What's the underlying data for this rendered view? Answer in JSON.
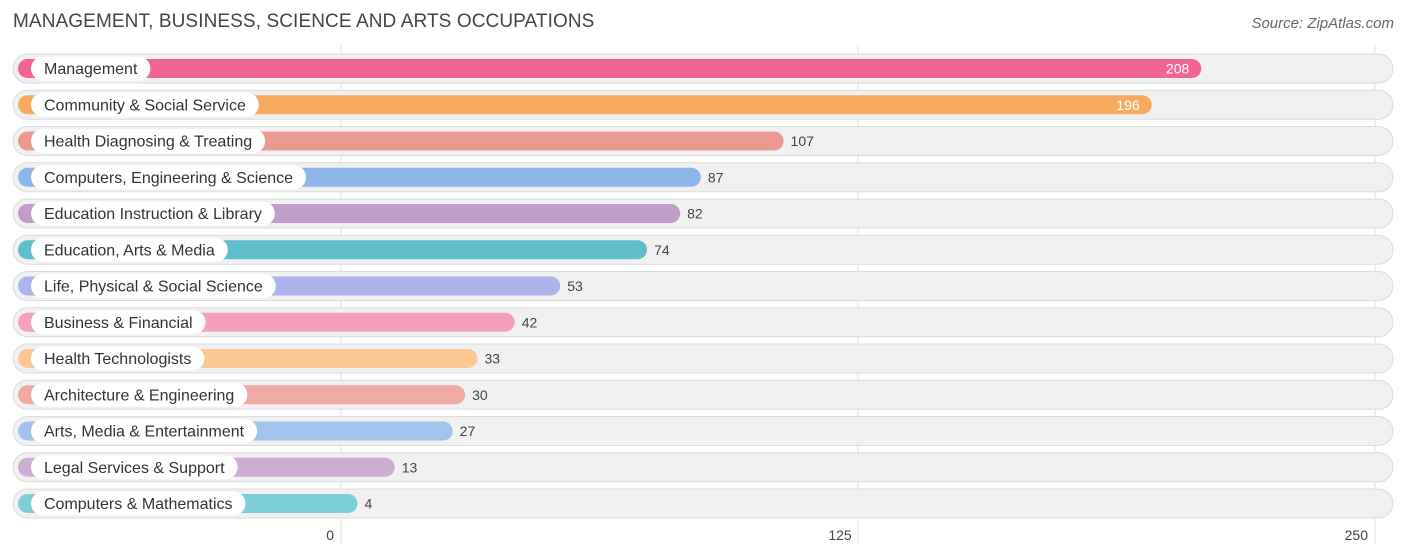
{
  "header": {
    "title": "MANAGEMENT, BUSINESS, SCIENCE AND ARTS OCCUPATIONS",
    "source": "Source: ZipAtlas.com"
  },
  "chart_data": {
    "type": "bar",
    "orientation": "horizontal",
    "title": "MANAGEMENT, BUSINESS, SCIENCE AND ARTS OCCUPATIONS",
    "xlabel": "",
    "ylabel": "",
    "xlim": [
      0,
      250
    ],
    "ticks": [
      0,
      125,
      250
    ],
    "grid": true,
    "categories": [
      "Management",
      "Community & Social Service",
      "Health Diagnosing & Treating",
      "Computers, Engineering & Science",
      "Education Instruction & Library",
      "Education, Arts & Media",
      "Life, Physical & Social Science",
      "Business & Financial",
      "Health Technologists",
      "Architecture & Engineering",
      "Arts, Media & Entertainment",
      "Legal Services & Support",
      "Computers & Mathematics"
    ],
    "values": [
      208,
      196,
      107,
      87,
      82,
      74,
      53,
      42,
      33,
      30,
      27,
      13,
      4
    ],
    "colors": [
      "#f06595",
      "#f7ab5e",
      "#ea9a92",
      "#8eb5e8",
      "#c09ec9",
      "#5fbfc9",
      "#adb4ec",
      "#f5a0bc",
      "#fbc794",
      "#efaaa6",
      "#a3c3ec",
      "#cdaed3",
      "#7dced6"
    ]
  }
}
